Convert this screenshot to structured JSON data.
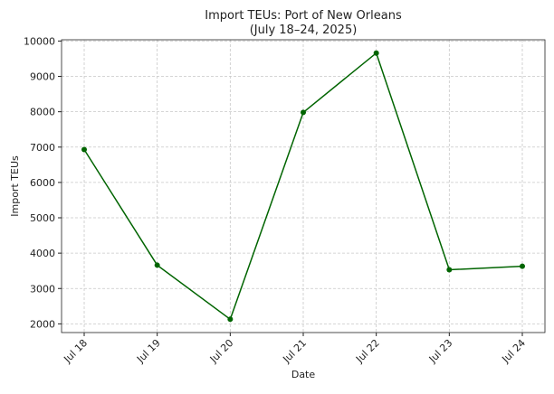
{
  "chart_data": {
    "type": "line",
    "title": "Import TEUs: Port of New Orleans",
    "subtitle": "(July 18–24, 2025)",
    "x_label": "Date",
    "y_label": "Import TEUs",
    "categories": [
      "Jul 18",
      "Jul 19",
      "Jul 20",
      "Jul 21",
      "Jul 22",
      "Jul 23",
      "Jul 24"
    ],
    "series": [
      {
        "name": "Import TEUs",
        "color": "#006400",
        "values": [
          6930,
          3660,
          2130,
          7980,
          9660,
          3530,
          3630
        ]
      }
    ],
    "ylim": [
      1754,
      10036
    ],
    "yticks": [
      2000,
      3000,
      4000,
      5000,
      6000,
      7000,
      8000,
      9000,
      10000
    ],
    "grid": true
  }
}
